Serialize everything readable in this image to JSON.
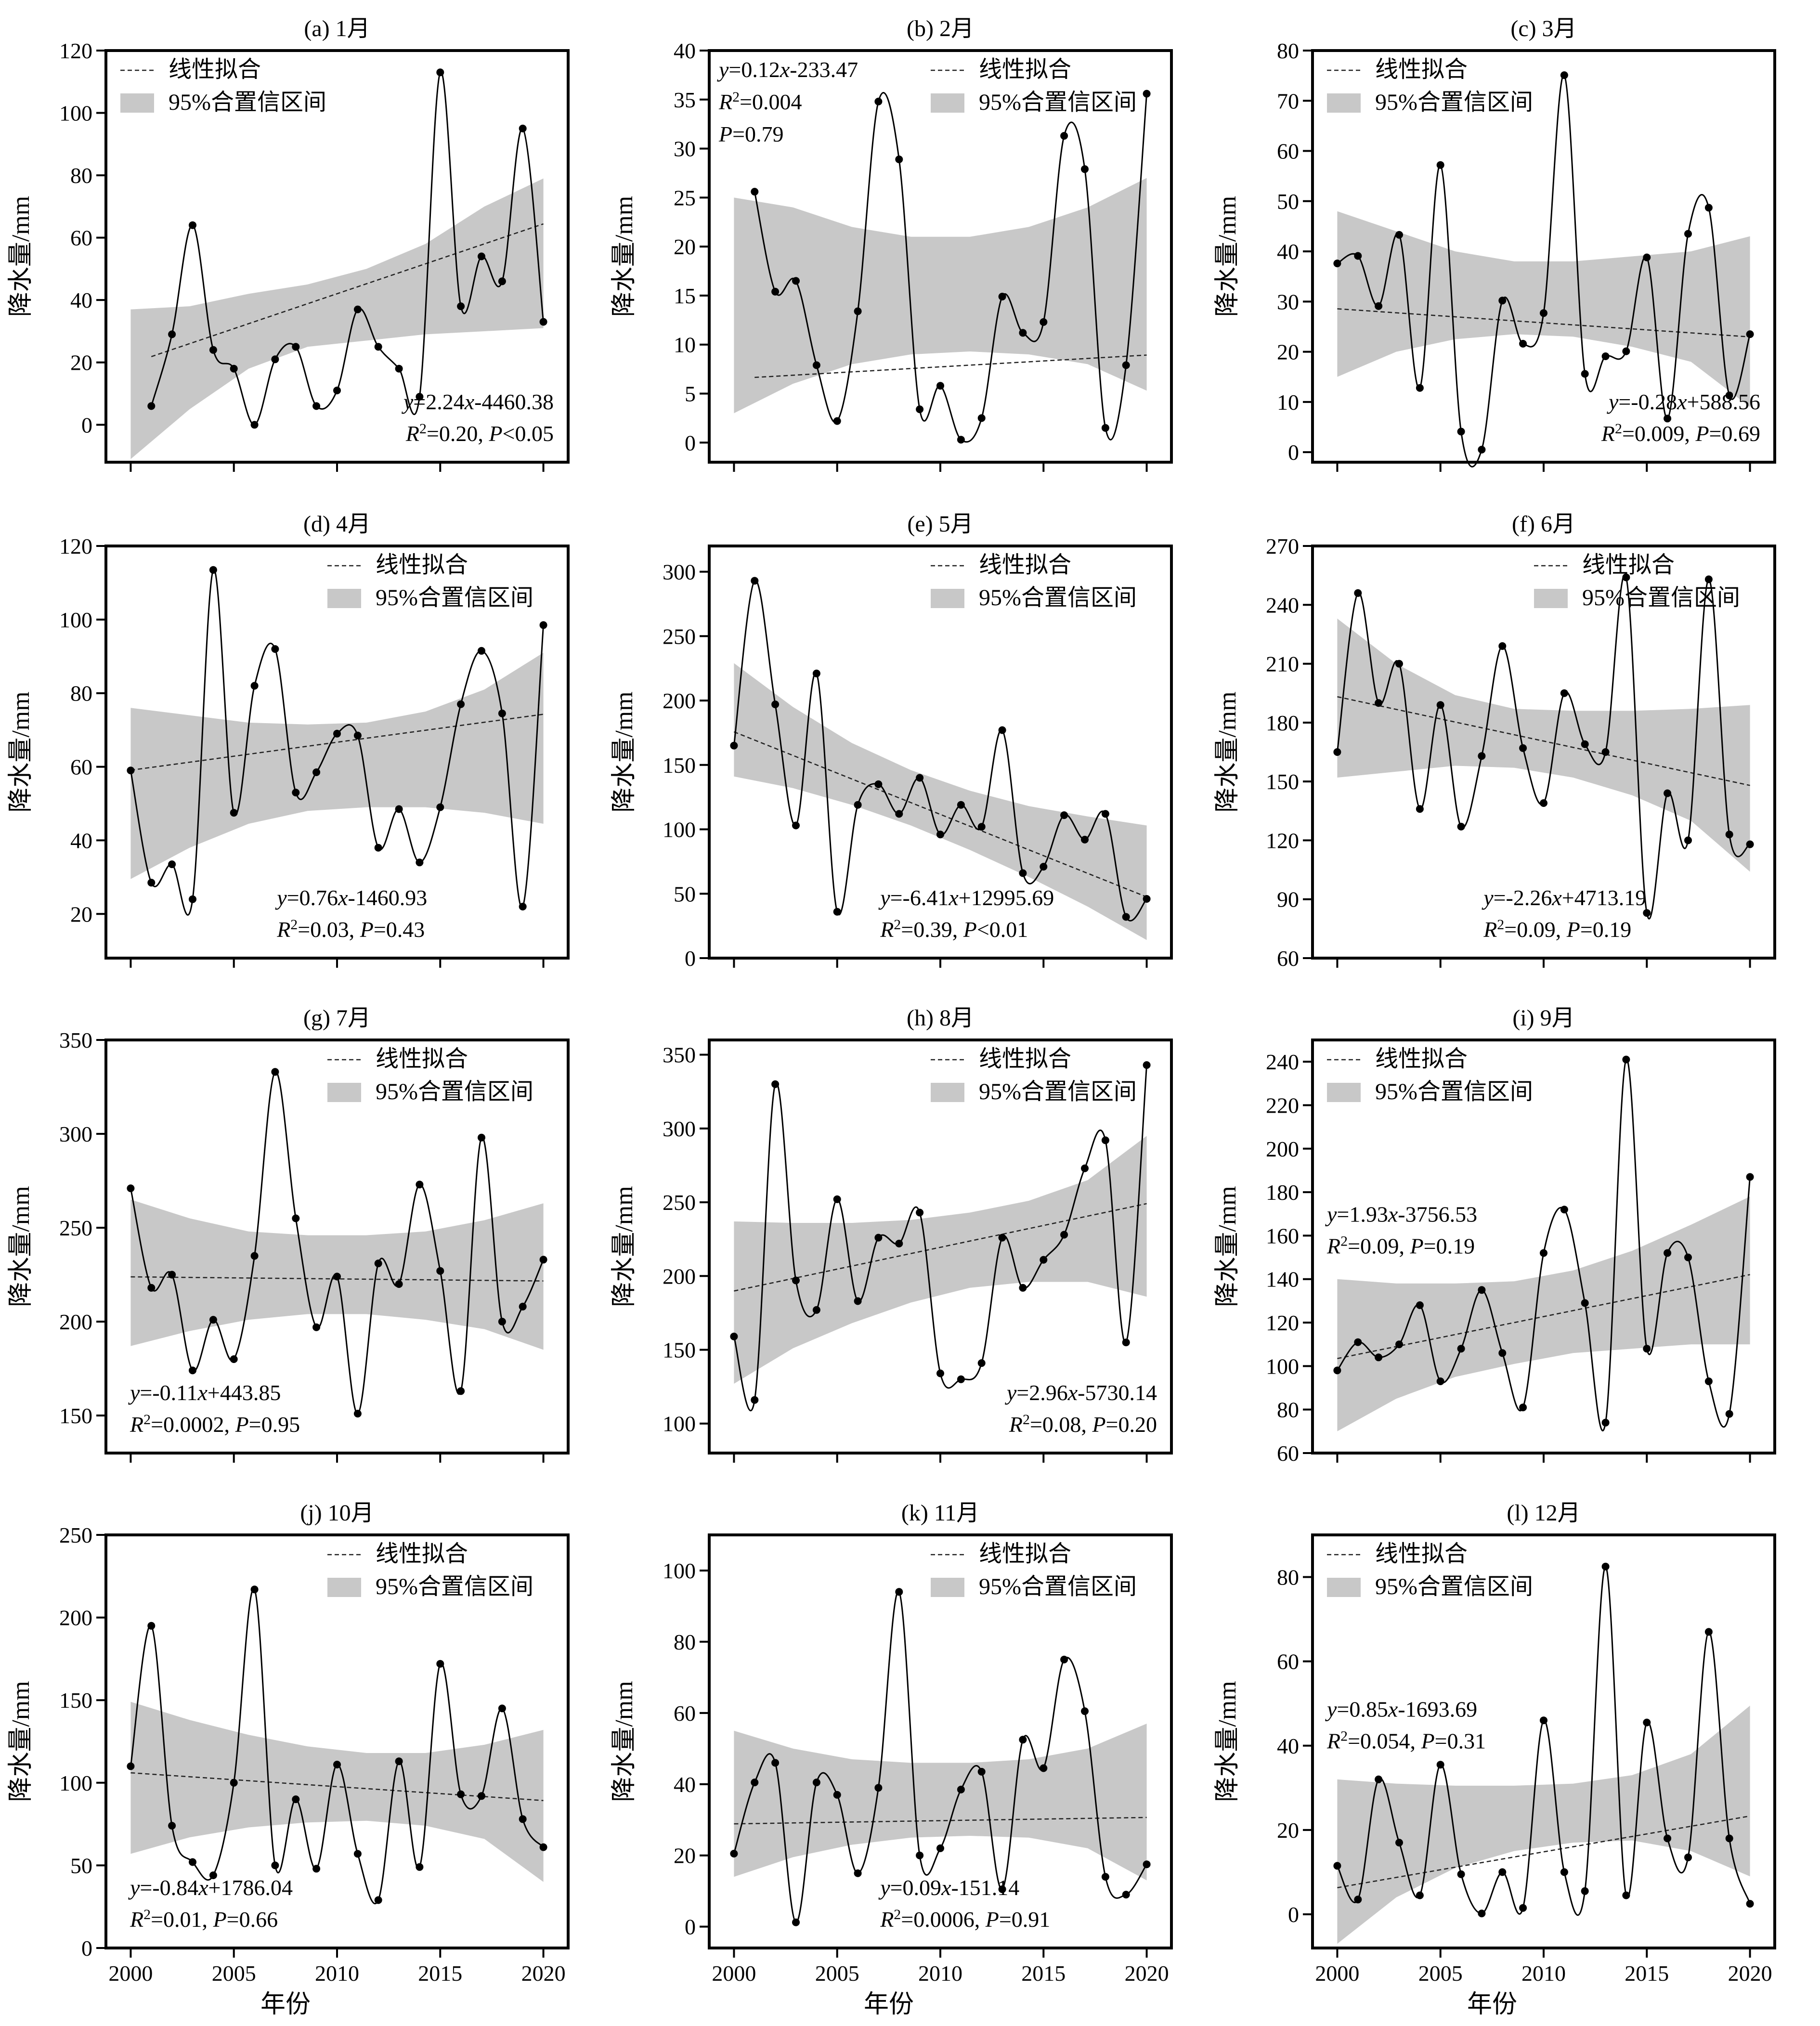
{
  "figure": {
    "xlabel": "年份",
    "ylabel": "降水量/mm"
  },
  "legend": {
    "fit": "线性拟合",
    "ci": "95%合置信区间"
  },
  "colors": {
    "ci_band": "#c8c8c8",
    "line": "#000000",
    "frame": "#000000"
  },
  "xaxis": {
    "range": [
      1998.8,
      2021.2
    ],
    "ticks": [
      2000,
      2005,
      2010,
      2015,
      2020
    ]
  },
  "chart_data": [
    {
      "type": "line",
      "title": "(a) 1月",
      "ylim": [
        -12,
        120
      ],
      "yticks": [
        0,
        20,
        40,
        60,
        80,
        100,
        120
      ],
      "x_start": 2001,
      "values": [
        6,
        29,
        64,
        24,
        18,
        0,
        21,
        25,
        6,
        11,
        37,
        25,
        18,
        9,
        113,
        38,
        54,
        46,
        95,
        33
      ],
      "fit": [
        2.24,
        -4460.38
      ],
      "ci_edge": [
        [
          37,
          -11
        ],
        [
          38,
          5
        ],
        [
          42,
          18
        ],
        [
          45,
          25
        ],
        [
          50,
          27
        ],
        [
          58,
          29
        ],
        [
          70,
          30
        ],
        [
          79,
          31
        ]
      ],
      "eq": [
        "y",
        "=2.24",
        "x",
        "-4460.38"
      ],
      "stats": [
        "R",
        "2",
        "=0.20, ",
        "P",
        "<0.05"
      ],
      "legend_pos": "top-left",
      "eq_pos": "bottom-right"
    },
    {
      "type": "line",
      "title": "(b) 2月",
      "ylim": [
        -2,
        40
      ],
      "yticks": [
        0,
        5,
        10,
        15,
        20,
        25,
        30,
        35,
        40
      ],
      "x_start": 2001,
      "values": [
        25.6,
        15.4,
        16.5,
        7.9,
        2.2,
        13.4,
        34.8,
        28.9,
        3.4,
        5.8,
        0.3,
        2.5,
        14.9,
        11.2,
        12.3,
        31.3,
        27.9,
        1.5,
        7.9,
        35.6
      ],
      "fit": [
        0.12,
        -233.47
      ],
      "ci_edge": [
        [
          25,
          3
        ],
        [
          24,
          6
        ],
        [
          22,
          8
        ],
        [
          21,
          9
        ],
        [
          21,
          9.3
        ],
        [
          22,
          9
        ],
        [
          24,
          8
        ],
        [
          27,
          5.3
        ]
      ],
      "eq": [
        "y",
        "=0.12",
        "x",
        "-233.47"
      ],
      "r2": [
        "R",
        "2",
        "=0.004"
      ],
      "pval": [
        "P",
        "=0.79"
      ],
      "legend_pos": "top-right",
      "eq_pos": "top-left"
    },
    {
      "type": "line",
      "title": "(c) 3月",
      "ylim": [
        -2,
        80
      ],
      "yticks": [
        0,
        10,
        20,
        30,
        40,
        50,
        60,
        70,
        80
      ],
      "x_start": 2000,
      "values": [
        37.6,
        39.1,
        29.1,
        43.3,
        12.8,
        57.2,
        4.1,
        0.5,
        30.2,
        21.6,
        27.7,
        75.1,
        15.6,
        19.1,
        20.1,
        38.8,
        6.7,
        43.5,
        48.7,
        11.3,
        23.5
      ],
      "fit": [
        -0.28,
        588.56
      ],
      "ci_edge": [
        [
          48,
          15
        ],
        [
          44,
          20
        ],
        [
          40,
          22.5
        ],
        [
          38,
          23.5
        ],
        [
          38,
          23
        ],
        [
          39,
          21
        ],
        [
          40,
          18
        ],
        [
          43,
          9
        ]
      ],
      "eq": [
        "y",
        "=-0.28",
        "x",
        "+588.56"
      ],
      "stats": [
        "R",
        "2",
        "=0.009, ",
        "P",
        "=0.69"
      ],
      "legend_pos": "top-left",
      "eq_pos": "bottom-right"
    },
    {
      "type": "line",
      "title": "(d) 4月",
      "ylim": [
        8,
        120
      ],
      "yticks": [
        20,
        40,
        60,
        80,
        100,
        120
      ],
      "x_start": 2000,
      "values": [
        59,
        28.5,
        33.5,
        24,
        113.5,
        47.5,
        82,
        92,
        53,
        58.5,
        69,
        68.5,
        38,
        48.5,
        34,
        49,
        77,
        91.5,
        74.5,
        22,
        98.5
      ],
      "fit": [
        0.76,
        -1460.93
      ],
      "ci_edge": [
        [
          76,
          29.5
        ],
        [
          74,
          38
        ],
        [
          72,
          44.5
        ],
        [
          71.5,
          48
        ],
        [
          72,
          49
        ],
        [
          75,
          49
        ],
        [
          81,
          47.5
        ],
        [
          91,
          44.5
        ]
      ],
      "eq": [
        "y",
        "=0.76",
        "x",
        "-1460.93"
      ],
      "stats": [
        "R",
        "2",
        "=0.03, ",
        "P",
        "=0.43"
      ],
      "legend_pos": "top-right",
      "eq_pos": "bottom-center"
    },
    {
      "type": "line",
      "title": "(e) 5月",
      "ylim": [
        0,
        320
      ],
      "yticks": [
        0,
        50,
        100,
        150,
        200,
        250,
        300
      ],
      "x_start": 2000,
      "values": [
        165,
        293,
        197,
        103,
        221,
        36,
        119,
        135,
        112,
        140,
        96,
        119,
        102,
        177,
        66,
        71,
        111,
        92,
        112,
        32,
        46
      ],
      "fit": [
        -6.41,
        12995.69
      ],
      "ci_edge": [
        [
          229,
          141
        ],
        [
          195,
          132
        ],
        [
          167,
          119
        ],
        [
          146,
          103
        ],
        [
          130,
          84
        ],
        [
          118,
          63
        ],
        [
          110,
          40
        ],
        [
          103,
          14
        ]
      ],
      "eq": [
        "y",
        "=-6.41",
        "x",
        "+12995.69"
      ],
      "stats": [
        "R",
        "2",
        "=0.39, ",
        "P",
        "<0.01"
      ],
      "legend_pos": "top-right",
      "eq_pos": "bottom-center"
    },
    {
      "type": "line",
      "title": "(f) 6月",
      "ylim": [
        60,
        270
      ],
      "yticks": [
        60,
        90,
        120,
        150,
        180,
        210,
        240,
        270
      ],
      "x_start": 2000,
      "values": [
        165,
        246,
        190,
        210,
        136,
        189,
        127,
        163,
        219,
        167,
        139,
        195,
        169,
        165,
        254,
        83,
        144,
        120,
        253,
        123,
        118
      ],
      "fit": [
        -2.26,
        4713.19
      ],
      "ci_edge": [
        [
          233,
          152
        ],
        [
          210,
          155
        ],
        [
          194,
          158
        ],
        [
          187,
          157
        ],
        [
          186,
          152
        ],
        [
          186,
          143
        ],
        [
          187,
          130
        ],
        [
          189,
          104
        ]
      ],
      "eq": [
        "y",
        "=-2.26",
        "x",
        "+4713.19"
      ],
      "stats": [
        "R",
        "2",
        "=0.09, ",
        "P",
        "=0.19"
      ],
      "legend_pos": "top-right",
      "eq_pos": "bottom-center"
    },
    {
      "type": "line",
      "title": "(g) 7月",
      "ylim": [
        130,
        350
      ],
      "yticks": [
        150,
        200,
        250,
        300,
        350
      ],
      "x_start": 2000,
      "values": [
        271,
        218,
        225,
        174,
        201,
        180,
        235,
        333,
        255,
        197,
        224,
        151,
        231,
        220,
        273,
        227,
        163,
        298,
        200,
        208,
        233
      ],
      "fit": [
        -0.11,
        443.85
      ],
      "ci_edge": [
        [
          265,
          187
        ],
        [
          255,
          195
        ],
        [
          248,
          201
        ],
        [
          246,
          204
        ],
        [
          246,
          204
        ],
        [
          248,
          201
        ],
        [
          254,
          196
        ],
        [
          263,
          185
        ]
      ],
      "eq": [
        "y",
        "=-0.11",
        "x",
        "+443.85"
      ],
      "stats": [
        "R",
        "2",
        "=0.0002, ",
        "P",
        "=0.95"
      ],
      "legend_pos": "top-right",
      "eq_pos": "bottom-left"
    },
    {
      "type": "line",
      "title": "(h) 8月",
      "ylim": [
        80,
        360
      ],
      "yticks": [
        100,
        150,
        200,
        250,
        300,
        350
      ],
      "x_start": 2000,
      "values": [
        159,
        116,
        330,
        197,
        177,
        252,
        183,
        226,
        222,
        243,
        134,
        130,
        141,
        226,
        192,
        211,
        228,
        273,
        292,
        155,
        343
      ],
      "fit": [
        2.96,
        -5730.14
      ],
      "ci_edge": [
        [
          237,
          127
        ],
        [
          236,
          151
        ],
        [
          236,
          168
        ],
        [
          238,
          182
        ],
        [
          243,
          192
        ],
        [
          251,
          196
        ],
        [
          265,
          196
        ],
        [
          295,
          186
        ]
      ],
      "eq": [
        "y",
        "=2.96",
        "x",
        "-5730.14"
      ],
      "stats": [
        "R",
        "2",
        "=0.08,    ",
        "P",
        "=0.20"
      ],
      "legend_pos": "top-right",
      "eq_pos": "bottom-right"
    },
    {
      "type": "line",
      "title": "(i) 9月",
      "ylim": [
        60,
        250
      ],
      "yticks": [
        60,
        80,
        100,
        120,
        140,
        160,
        180,
        200,
        220,
        240
      ],
      "x_start": 2000,
      "values": [
        98,
        111,
        104,
        110,
        128,
        93,
        108,
        135,
        106,
        81,
        152,
        172,
        129,
        74,
        241,
        108,
        152,
        150,
        93,
        78,
        187
      ],
      "fit": [
        1.93,
        -3756.53
      ],
      "ci_edge": [
        [
          140,
          70
        ],
        [
          138,
          85
        ],
        [
          138,
          95
        ],
        [
          139,
          101
        ],
        [
          144,
          106
        ],
        [
          153,
          108
        ],
        [
          165,
          110
        ],
        [
          178,
          110
        ]
      ],
      "eq": [
        "y",
        "=1.93",
        "x",
        "-3756.53"
      ],
      "stats": [
        "R",
        "2",
        "=0.09, ",
        "P",
        "=0.19"
      ],
      "legend_pos": "top-left",
      "eq_pos": "middle-left"
    },
    {
      "type": "line",
      "title": "(j) 10月",
      "ylim": [
        0,
        250
      ],
      "yticks": [
        0,
        50,
        100,
        150,
        200,
        250
      ],
      "x_start": 2000,
      "values": [
        110,
        195,
        74,
        52,
        44,
        100,
        217,
        50,
        90,
        48,
        111,
        57,
        29,
        113,
        49,
        172,
        93,
        92,
        145,
        78,
        61
      ],
      "fit": [
        -0.84,
        1786.04
      ],
      "ci_edge": [
        [
          149,
          57
        ],
        [
          138,
          67
        ],
        [
          129,
          73
        ],
        [
          122,
          76
        ],
        [
          118,
          77
        ],
        [
          118,
          74
        ],
        [
          123,
          66
        ],
        [
          132,
          40
        ]
      ],
      "eq": [
        "y",
        "=-0.84",
        "x",
        "+1786.04"
      ],
      "stats": [
        "R",
        "2",
        "=0.01, ",
        "P",
        "=0.66"
      ],
      "legend_pos": "top-right",
      "eq_pos": "bottom-left"
    },
    {
      "type": "line",
      "title": "(k) 11月",
      "ylim": [
        -6,
        110
      ],
      "yticks": [
        0,
        20,
        40,
        60,
        80,
        100
      ],
      "x_start": 2000,
      "values": [
        20.5,
        40.5,
        46,
        1.2,
        40.5,
        37,
        15,
        39,
        94,
        20,
        22,
        38.5,
        43.5,
        10.5,
        52.5,
        44.5,
        75,
        60.5,
        14,
        9,
        17.5
      ],
      "fit": [
        0.09,
        -151.14
      ],
      "ci_edge": [
        [
          55,
          14
        ],
        [
          50,
          19.5
        ],
        [
          47,
          23
        ],
        [
          46,
          25
        ],
        [
          46,
          25.5
        ],
        [
          47,
          25
        ],
        [
          50,
          22
        ],
        [
          57,
          13
        ]
      ],
      "eq": [
        "y",
        "=0.09",
        "x",
        "-151.14"
      ],
      "stats": [
        "R",
        "2",
        "=0.0006,    ",
        "P",
        "=0.91"
      ],
      "legend_pos": "top-right",
      "eq_pos": "bottom-center"
    },
    {
      "type": "line",
      "title": "(l) 12月",
      "ylim": [
        -8,
        90
      ],
      "yticks": [
        0,
        20,
        40,
        60,
        80
      ],
      "x_start": 2000,
      "values": [
        11.5,
        3.5,
        32,
        17,
        4.5,
        35.5,
        9.5,
        0.2,
        10,
        1.5,
        46,
        10,
        5.5,
        82.5,
        4.5,
        45.5,
        18,
        13.5,
        67,
        18,
        2.5
      ],
      "fit": [
        0.85,
        -1693.69
      ],
      "ci_edge": [
        [
          32,
          -7
        ],
        [
          31,
          4
        ],
        [
          30.5,
          11
        ],
        [
          30.5,
          15
        ],
        [
          31,
          17
        ],
        [
          33,
          17.5
        ],
        [
          38,
          15
        ],
        [
          49.5,
          9
        ]
      ],
      "eq": [
        "y",
        "=0.85",
        "x",
        "-1693.69"
      ],
      "stats": [
        "R",
        "2",
        "=0.054, ",
        "P",
        "=0.31"
      ],
      "legend_pos": "top-left",
      "eq_pos": "middle-left"
    }
  ]
}
